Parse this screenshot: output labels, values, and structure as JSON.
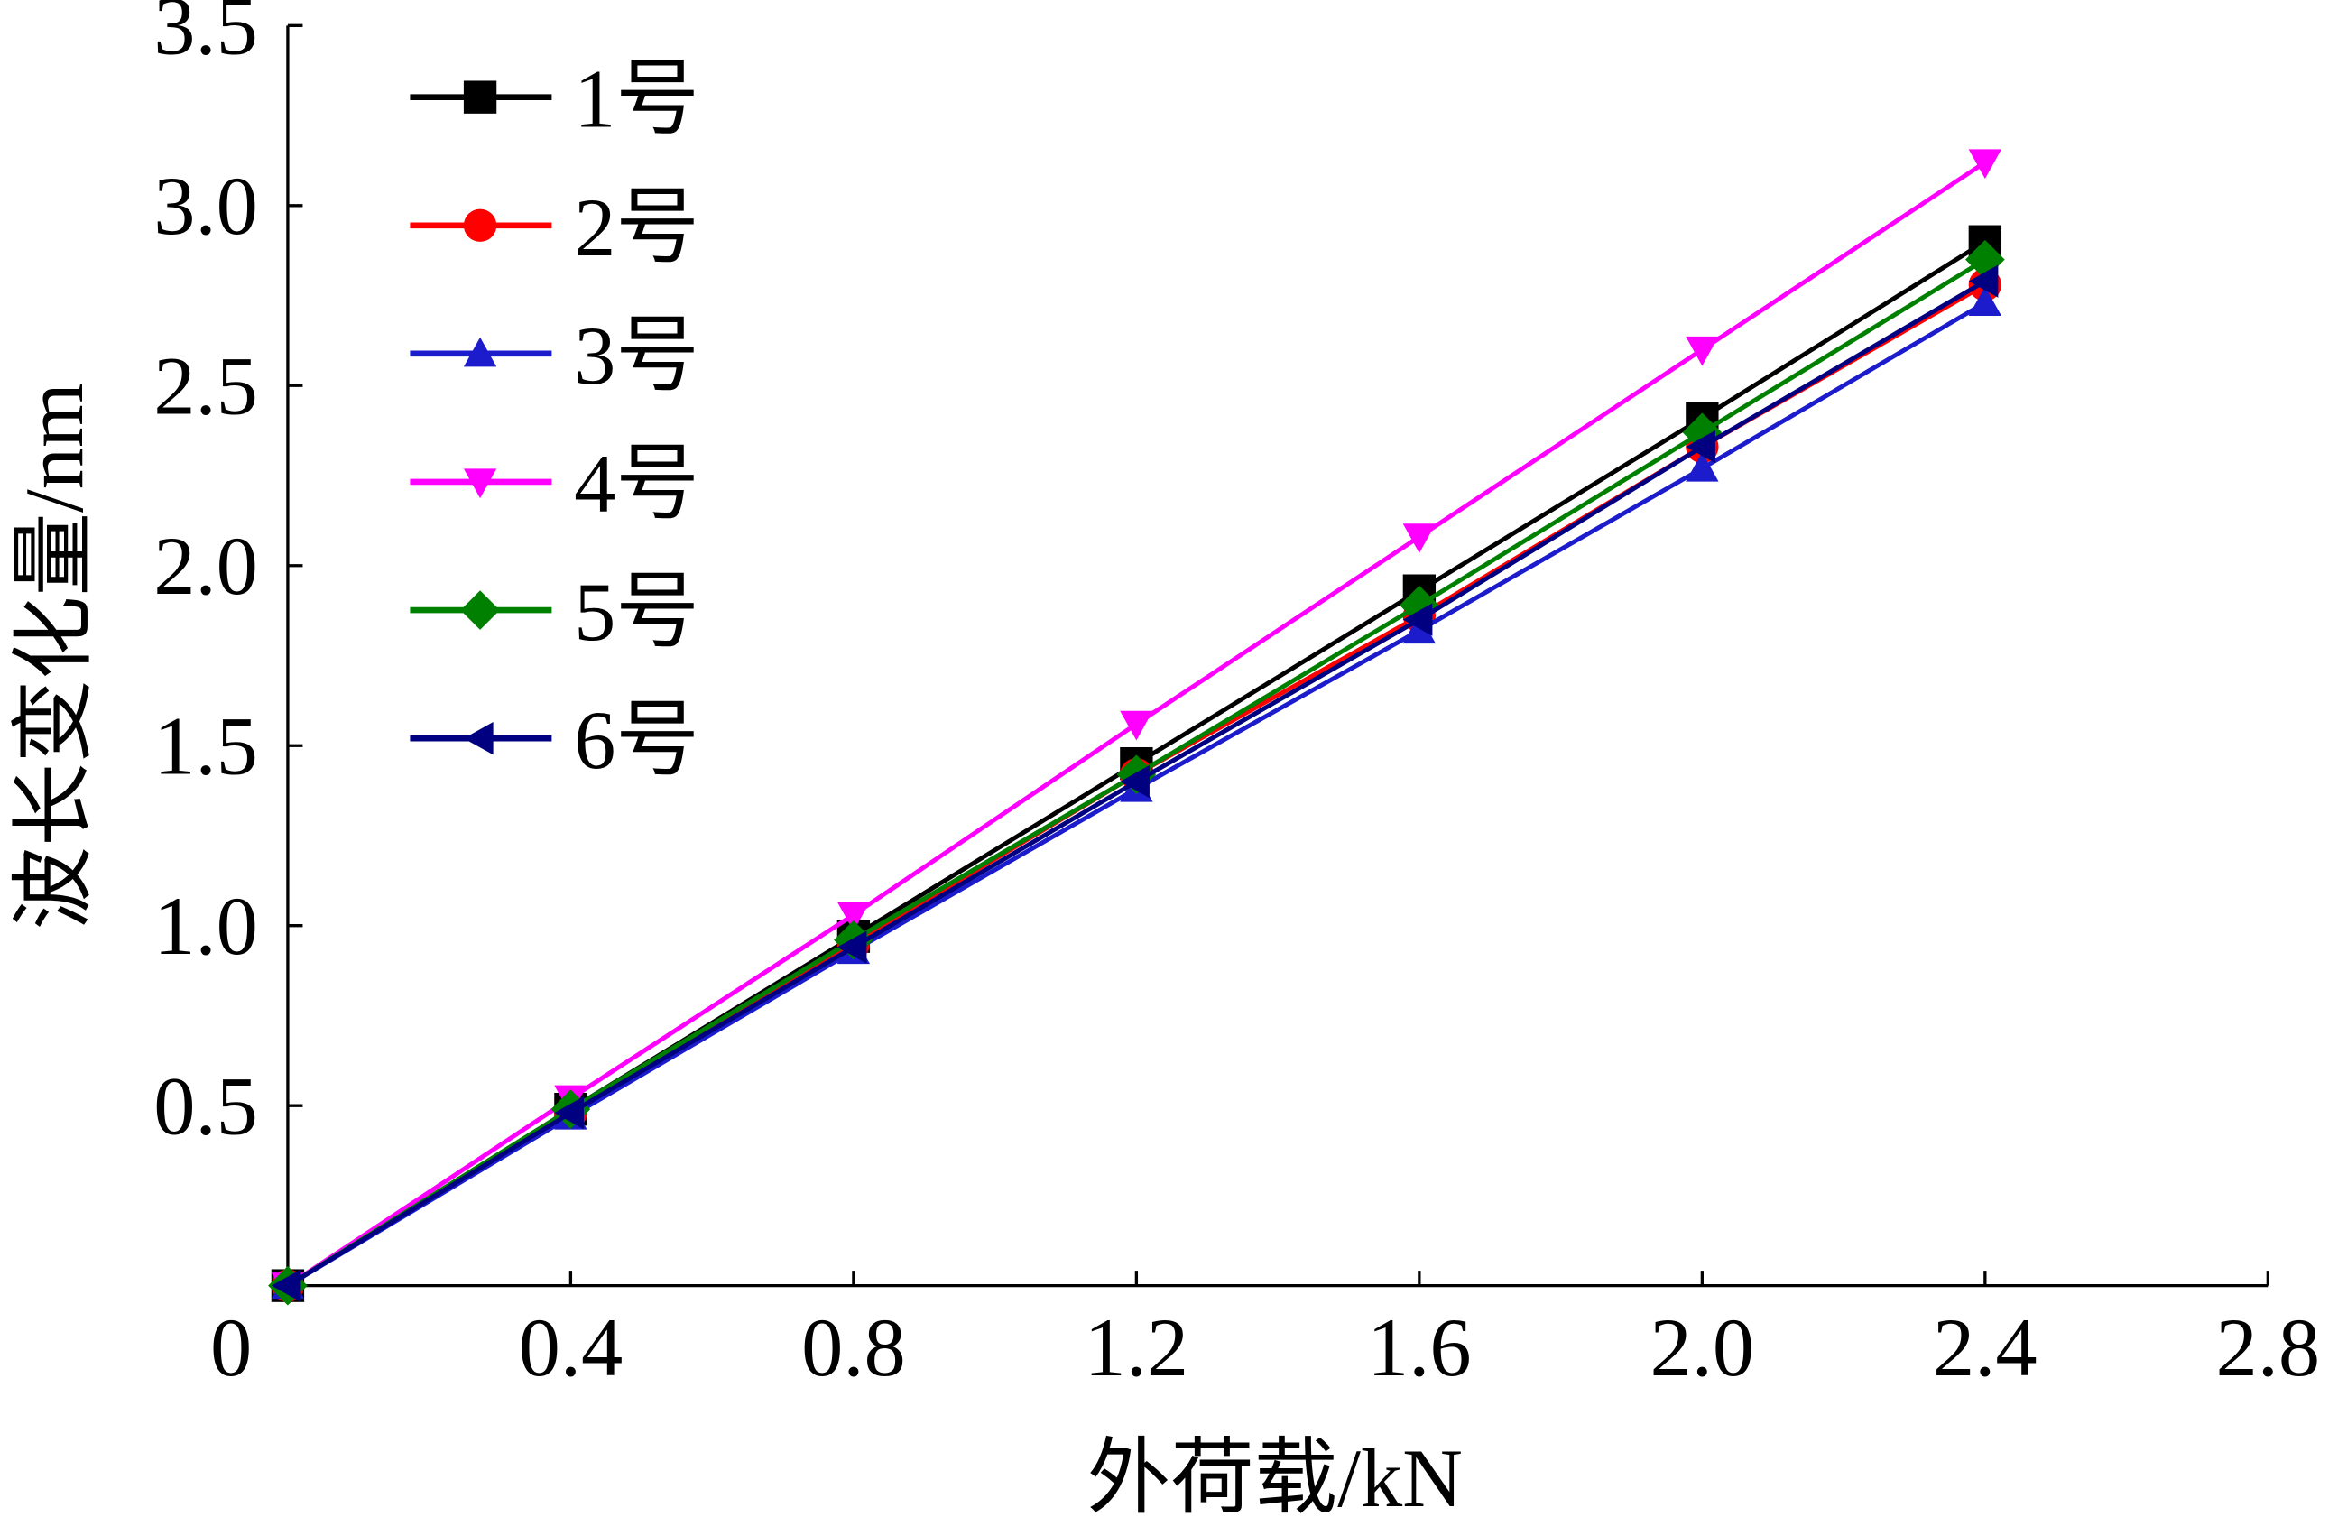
{
  "chart_data": {
    "type": "line",
    "xlabel": "外荷载/kN",
    "ylabel": "波长变化量/nm",
    "x": [
      0,
      0.4,
      0.8,
      1.2,
      1.6,
      2.0,
      2.4
    ],
    "series": [
      {
        "name": "1号",
        "color": "#000000",
        "marker": "square",
        "values": [
          0,
          0.49,
          0.97,
          1.45,
          1.93,
          2.41,
          2.9
        ]
      },
      {
        "name": "2号",
        "color": "#ff0000",
        "marker": "circle",
        "values": [
          0,
          0.48,
          0.95,
          1.42,
          1.86,
          2.33,
          2.78
        ]
      },
      {
        "name": "3号",
        "color": "#1c1ccc",
        "marker": "triangle-up",
        "values": [
          0,
          0.47,
          0.93,
          1.38,
          1.82,
          2.27,
          2.73
        ]
      },
      {
        "name": "4号",
        "color": "#ff00ff",
        "marker": "triangle-down",
        "values": [
          0,
          0.52,
          1.03,
          1.56,
          2.08,
          2.6,
          3.12
        ]
      },
      {
        "name": "5号",
        "color": "#008000",
        "marker": "diamond",
        "values": [
          0,
          0.49,
          0.96,
          1.42,
          1.89,
          2.37,
          2.85
        ]
      },
      {
        "name": "6号",
        "color": "#000080",
        "marker": "triangle-left",
        "values": [
          0,
          0.48,
          0.94,
          1.4,
          1.85,
          2.33,
          2.79
        ]
      }
    ],
    "xlim": [
      0,
      2.8
    ],
    "xticks": [
      0,
      0.4,
      0.8,
      1.2,
      1.6,
      {
        "value": 2,
        "label": "2.0"
      },
      2.4,
      2.8
    ],
    "ylim": [
      0,
      3.5
    ],
    "yticks": [
      0.5,
      {
        "value": 1,
        "label": "1.0"
      },
      1.5,
      {
        "value": 2,
        "label": "2.0"
      },
      2.5,
      {
        "value": 3,
        "label": "3.0"
      },
      3.5
    ],
    "legend": "upper-left"
  }
}
